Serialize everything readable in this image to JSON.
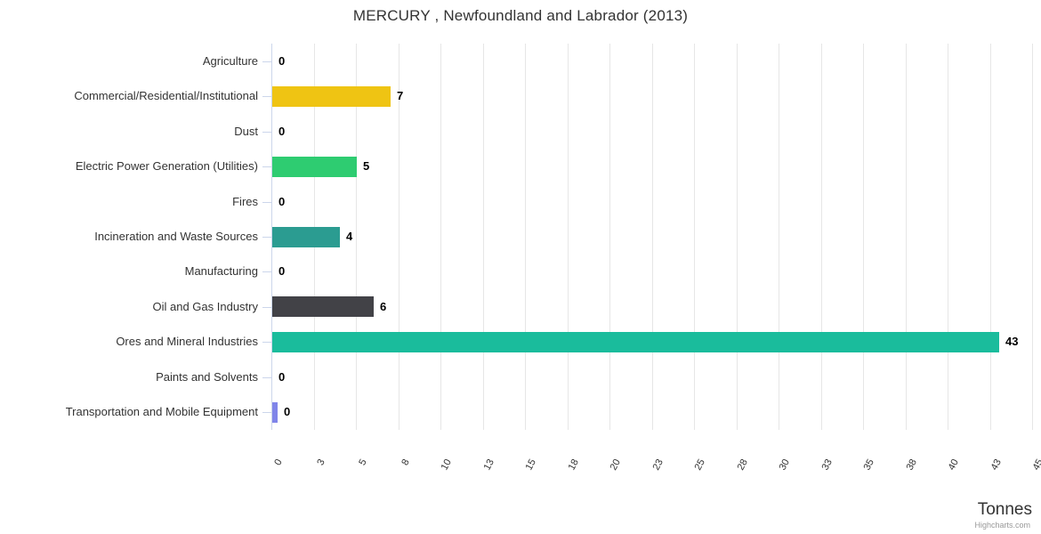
{
  "chart_data": {
    "type": "bar",
    "orientation": "horizontal",
    "title": "MERCURY , Newfoundland and Labrador (2013)",
    "categories": [
      "Agriculture",
      "Commercial/Residential/Institutional",
      "Dust",
      "Electric Power Generation (Utilities)",
      "Fires",
      "Incineration and Waste Sources",
      "Manufacturing",
      "Oil and Gas Industry",
      "Ores and Mineral Industries",
      "Paints and Solvents",
      "Transportation and Mobile Equipment"
    ],
    "values": [
      0,
      7,
      0,
      5,
      0,
      4,
      0,
      6,
      43,
      0,
      0
    ],
    "value_labels": [
      "0",
      "7",
      "0",
      "5",
      "0",
      "4",
      "0",
      "6",
      "43",
      "0",
      "0"
    ],
    "bar_lengths": [
      0,
      7,
      0,
      5,
      0,
      4,
      0,
      6,
      43,
      0,
      0.3
    ],
    "bar_colors": [
      null,
      "#EFC413",
      null,
      "#2ECC71",
      null,
      "#2B9C91",
      null,
      "#424247",
      "#1ABC9C",
      null,
      "#8085E9"
    ],
    "xlabel": "Tonnes",
    "ylabel": "",
    "xlim": [
      0,
      45
    ],
    "xtick_positions": [
      0,
      2.5,
      5,
      7.5,
      10,
      12.5,
      15,
      17.5,
      20,
      22.5,
      25,
      27.5,
      30,
      32.5,
      35,
      37.5,
      40,
      42.5,
      45
    ],
    "xtick_labels": [
      "0",
      "3",
      "5",
      "8",
      "10",
      "13",
      "15",
      "18",
      "20",
      "23",
      "25",
      "28",
      "30",
      "33",
      "35",
      "38",
      "40",
      "43",
      "45"
    ],
    "grid": true,
    "legend": false,
    "credit": "Highcharts.com"
  },
  "colors": {
    "background": "#FFFFFF",
    "axis_line": "#CCD6EB",
    "gridline": "#E6E6E6",
    "title_text": "#333333",
    "category_text": "#333333",
    "value_text": "#000000",
    "tick_text": "#333333",
    "axis_title_text": "#333333",
    "credit_text": "#999999"
  }
}
